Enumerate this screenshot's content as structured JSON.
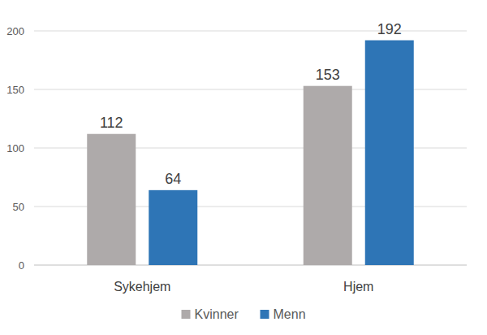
{
  "chart_data": {
    "type": "bar",
    "categories": [
      "Sykehjem",
      "Hjem"
    ],
    "series": [
      {
        "name": "Kvinner",
        "color": "#aeaaaa",
        "values": [
          112,
          153
        ]
      },
      {
        "name": "Menn",
        "color": "#2e75b6",
        "values": [
          64,
          192
        ]
      }
    ],
    "ylim": [
      0,
      200
    ],
    "yticks": [
      0,
      50,
      100,
      150,
      200
    ],
    "grid": true,
    "data_labels": true,
    "legend": "bottom"
  }
}
